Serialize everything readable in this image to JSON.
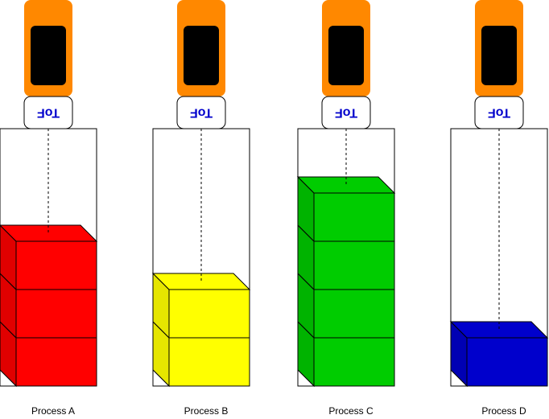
{
  "processes": [
    {
      "name": "Process A",
      "sensor": "ToF",
      "boxes": 3,
      "color": "#ff0000",
      "side_color": "#e00000"
    },
    {
      "name": "Process B",
      "sensor": "ToF",
      "boxes": 2,
      "color": "#ffff00",
      "side_color": "#e6e600"
    },
    {
      "name": "Process C",
      "sensor": "ToF",
      "boxes": 4,
      "color": "#00cc00",
      "side_color": "#00b300"
    },
    {
      "name": "Process D",
      "sensor": "ToF",
      "boxes": 1,
      "color": "#0000cc",
      "side_color": "#0000b3"
    }
  ],
  "colors": {
    "sensor_body": "#ff8800",
    "sensor_lens": "#000000",
    "tof_text": "#0000cc",
    "outline": "#000000"
  }
}
